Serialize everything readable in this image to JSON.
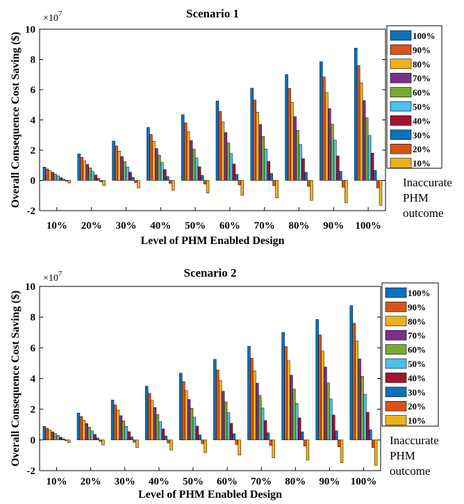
{
  "chart_data": [
    {
      "type": "bar",
      "title": "Scenario 1",
      "xlabel": "Level of PHM Enabled Design",
      "ylabel": "Overall Consequence Cost Saving ($)",
      "y_exponent_base": "×10",
      "y_exponent_power": "7",
      "ylim": [
        -2,
        10
      ],
      "yticks": [
        "-2",
        "0",
        "2",
        "4",
        "6",
        "8",
        "10"
      ],
      "categories": [
        "10%",
        "20%",
        "30%",
        "40%",
        "50%",
        "60%",
        "70%",
        "80%",
        "90%",
        "100%"
      ],
      "legend_position": "right",
      "side_note": [
        "Inaccurate",
        "PHM",
        "outcome"
      ],
      "series": [
        {
          "name": "100%",
          "color": "#0a72bd",
          "values": [
            0.88,
            1.75,
            2.6,
            3.5,
            4.35,
            5.25,
            6.1,
            7.0,
            7.85,
            8.75
          ]
        },
        {
          "name": "90%",
          "color": "#d95319",
          "values": [
            0.76,
            1.52,
            2.28,
            3.04,
            3.8,
            4.56,
            5.32,
            6.08,
            6.84,
            7.6
          ]
        },
        {
          "name": "80%",
          "color": "#edb120",
          "values": [
            0.64,
            1.29,
            1.94,
            2.58,
            3.22,
            3.87,
            4.51,
            5.16,
            5.8,
            6.45
          ]
        },
        {
          "name": "70%",
          "color": "#7e2f8e",
          "values": [
            0.53,
            1.06,
            1.58,
            2.11,
            2.64,
            3.17,
            3.7,
            4.22,
            4.75,
            5.28
          ]
        },
        {
          "name": "60%",
          "color": "#77ac30",
          "values": [
            0.41,
            0.83,
            1.24,
            1.66,
            2.07,
            2.48,
            2.9,
            3.31,
            3.72,
            4.14
          ]
        },
        {
          "name": "50%",
          "color": "#4dbeee",
          "values": [
            0.3,
            0.59,
            0.89,
            1.19,
            1.49,
            1.78,
            2.08,
            2.38,
            2.67,
            2.97
          ]
        },
        {
          "name": "40%",
          "color": "#a2142f",
          "values": [
            0.18,
            0.36,
            0.54,
            0.72,
            0.9,
            1.08,
            1.26,
            1.44,
            1.62,
            1.8
          ]
        },
        {
          "name": "30%",
          "color": "#0a72bd",
          "values": [
            0.07,
            0.13,
            0.2,
            0.26,
            0.33,
            0.4,
            0.46,
            0.53,
            0.6,
            0.66
          ]
        },
        {
          "name": "20%",
          "color": "#d95319",
          "values": [
            -0.05,
            -0.1,
            -0.15,
            -0.2,
            -0.25,
            -0.3,
            -0.35,
            -0.4,
            -0.45,
            -0.5
          ]
        },
        {
          "name": "10%",
          "color": "#edb120",
          "values": [
            -0.17,
            -0.33,
            -0.5,
            -0.66,
            -0.83,
            -0.99,
            -1.16,
            -1.32,
            -1.49,
            -1.65
          ]
        }
      ]
    },
    {
      "type": "bar",
      "title": "Scenario 2",
      "xlabel": "Level of PHM Enabled Design",
      "ylabel": "Overall Consequence Cost Saving ($)",
      "y_exponent_base": "×10",
      "y_exponent_power": "7",
      "ylim": [
        -2,
        10
      ],
      "yticks": [
        "-2",
        "0",
        "2",
        "4",
        "6",
        "8",
        "10"
      ],
      "categories": [
        "10%",
        "20%",
        "30%",
        "40%",
        "50%",
        "60%",
        "70%",
        "80%",
        "90%",
        "100%"
      ],
      "legend_position": "right",
      "side_note": [
        "Inaccurate",
        "PHM",
        "outcome"
      ],
      "series": [
        {
          "name": "100%",
          "color": "#0a72bd",
          "values": [
            0.88,
            1.75,
            2.6,
            3.5,
            4.35,
            5.25,
            6.1,
            7.0,
            7.85,
            8.75
          ]
        },
        {
          "name": "90%",
          "color": "#d95319",
          "values": [
            0.76,
            1.52,
            2.28,
            3.04,
            3.8,
            4.56,
            5.32,
            6.08,
            6.84,
            7.6
          ]
        },
        {
          "name": "80%",
          "color": "#edb120",
          "values": [
            0.64,
            1.29,
            1.94,
            2.58,
            3.22,
            3.87,
            4.51,
            5.16,
            5.8,
            6.45
          ]
        },
        {
          "name": "70%",
          "color": "#7e2f8e",
          "values": [
            0.53,
            1.06,
            1.58,
            2.11,
            2.64,
            3.17,
            3.7,
            4.22,
            4.75,
            5.28
          ]
        },
        {
          "name": "60%",
          "color": "#77ac30",
          "values": [
            0.41,
            0.83,
            1.24,
            1.66,
            2.07,
            2.48,
            2.9,
            3.31,
            3.72,
            4.14
          ]
        },
        {
          "name": "50%",
          "color": "#4dbeee",
          "values": [
            0.3,
            0.59,
            0.89,
            1.19,
            1.49,
            1.78,
            2.08,
            2.38,
            2.67,
            2.97
          ]
        },
        {
          "name": "40%",
          "color": "#a2142f",
          "values": [
            0.18,
            0.36,
            0.54,
            0.72,
            0.9,
            1.08,
            1.26,
            1.44,
            1.62,
            1.8
          ]
        },
        {
          "name": "30%",
          "color": "#0a72bd",
          "values": [
            0.07,
            0.13,
            0.2,
            0.26,
            0.33,
            0.4,
            0.46,
            0.53,
            0.6,
            0.66
          ]
        },
        {
          "name": "20%",
          "color": "#d95319",
          "values": [
            -0.05,
            -0.1,
            -0.15,
            -0.2,
            -0.25,
            -0.3,
            -0.35,
            -0.4,
            -0.45,
            -0.5
          ]
        },
        {
          "name": "10%",
          "color": "#edb120",
          "values": [
            -0.17,
            -0.33,
            -0.5,
            -0.66,
            -0.83,
            -0.99,
            -1.16,
            -1.32,
            -1.49,
            -1.65
          ]
        }
      ]
    }
  ]
}
